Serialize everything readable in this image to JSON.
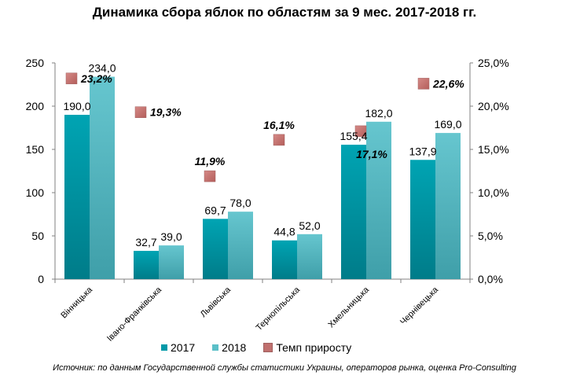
{
  "chart_data": {
    "type": "bar",
    "title": "Динамика сбора яблок по областям за 9 мес. 2017-2018 гг.",
    "categories": [
      "Вінницька",
      "Івано-Франківська",
      "Львівська",
      "Тернопільська",
      "Хмельницька",
      "Чернівецька"
    ],
    "series": [
      {
        "name": "2017",
        "axis": "left",
        "values": [
          190.0,
          32.7,
          69.7,
          44.8,
          155.4,
          137.9
        ],
        "labels": [
          "190,0",
          "32,7",
          "69,7",
          "44,8",
          "155,4",
          "137,9"
        ],
        "color": "#0099a8"
      },
      {
        "name": "2018",
        "axis": "left",
        "values": [
          234.0,
          39.0,
          78.0,
          52.0,
          182.0,
          169.0
        ],
        "labels": [
          "234,0",
          "39,0",
          "78,0",
          "52,0",
          "182,0",
          "169,0"
        ],
        "color": "#5bbfc8"
      },
      {
        "name": "Темп приросту",
        "axis": "right",
        "type": "scatter",
        "values": [
          23.2,
          19.3,
          11.9,
          16.1,
          17.1,
          22.6
        ],
        "labels": [
          "23,2%",
          "19,3%",
          "11,9%",
          "16,1%",
          "17,1%",
          "22,6%"
        ],
        "color": "#c0706e"
      }
    ],
    "ylim": [
      0,
      250
    ],
    "yticks": [
      "0",
      "50",
      "100",
      "150",
      "200",
      "250"
    ],
    "y2lim": [
      0,
      25
    ],
    "y2ticks": [
      "0,0%",
      "5,0%",
      "10,0%",
      "15,0%",
      "20,0%",
      "25,0%"
    ],
    "legend_position": "bottom",
    "grid": false
  },
  "source_note": "Источник: по данным Государственной службы статистики Украины, операторов рынка, оценка Pro-Consulting"
}
